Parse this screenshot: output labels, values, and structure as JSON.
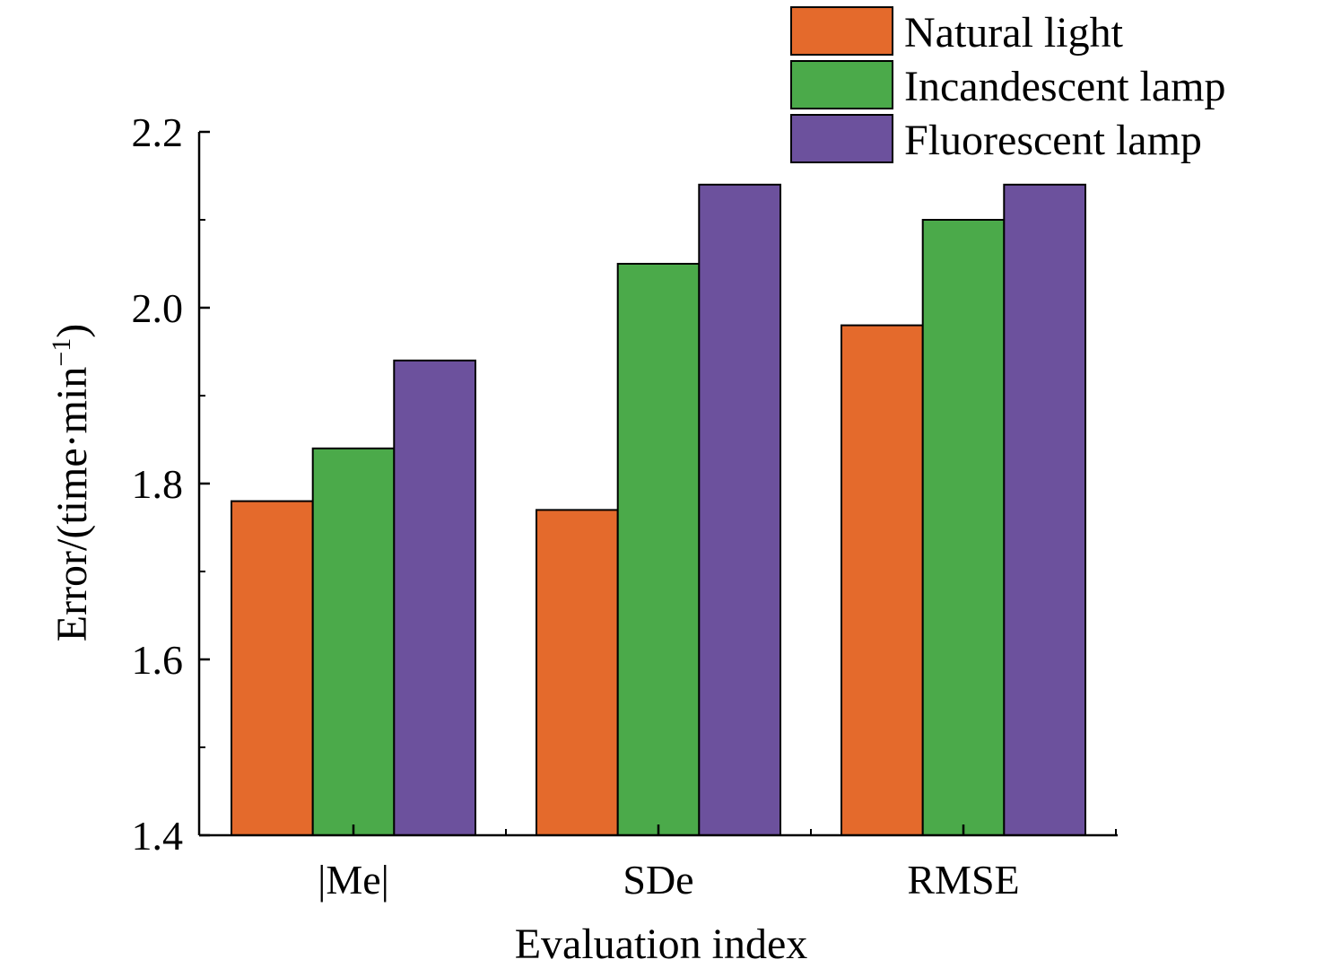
{
  "chart_data": {
    "type": "bar",
    "categories": [
      "|Me|",
      "SDe",
      "RMSE"
    ],
    "series": [
      {
        "name": "Natural light",
        "color": "#E46A2C",
        "values": [
          1.78,
          1.77,
          1.98
        ]
      },
      {
        "name": "Incandescent lamp",
        "color": "#4BAA4A",
        "values": [
          1.84,
          2.05,
          2.1
        ]
      },
      {
        "name": "Fluorescent lamp",
        "color": "#6C519D",
        "values": [
          1.94,
          2.14,
          2.14
        ]
      }
    ],
    "xlabel": "Evaluation index",
    "ylabel": "Error/(time·min",
    "ylabel_sup": "−1",
    "ylabel_close": ")",
    "ylim": [
      1.4,
      2.2
    ],
    "yticks": [
      1.4,
      1.6,
      1.8,
      2.0,
      2.2
    ],
    "ytick_labels": [
      "1.4",
      "1.6",
      "1.8",
      "2.0",
      "2.2"
    ],
    "grid": false,
    "legend_position": "top-right"
  }
}
